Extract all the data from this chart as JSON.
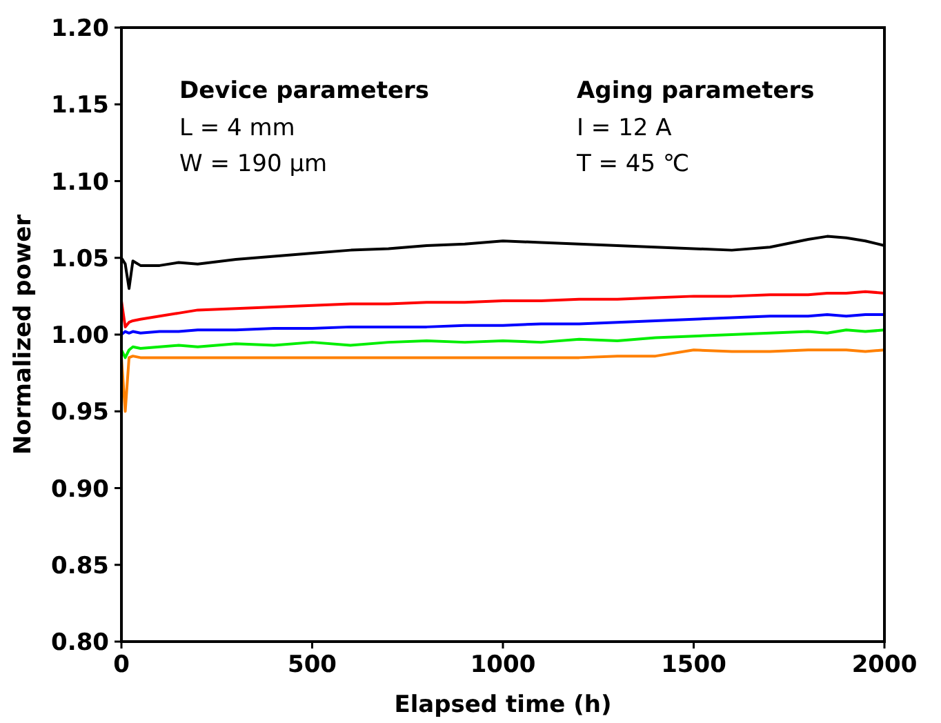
{
  "chart_data": {
    "type": "line",
    "xlabel": "Elapsed time (h)",
    "ylabel": "Normalized power",
    "xlim": [
      0,
      2000
    ],
    "ylim": [
      0.8,
      1.2
    ],
    "xticks": [
      0,
      500,
      1000,
      1500,
      2000
    ],
    "yticks": [
      {
        "value": 0.8,
        "label": "0.80"
      },
      {
        "value": 0.85,
        "label": "0.85"
      },
      {
        "value": 0.9,
        "label": "0.90"
      },
      {
        "value": 0.95,
        "label": "0.95"
      },
      {
        "value": 1.0,
        "label": "1.00"
      },
      {
        "value": 1.05,
        "label": "1.05"
      },
      {
        "value": 1.1,
        "label": "1.10"
      },
      {
        "value": 1.15,
        "label": "1.15"
      },
      {
        "value": 1.2,
        "label": "1.20"
      }
    ],
    "grid": false,
    "line_style": "solid",
    "annotations": [
      "Device parameters",
      "L = 4  mm",
      "W = 190  μm",
      "Aging parameters",
      "I = 12  A",
      "T = 45  ℃"
    ],
    "x": [
      0,
      10,
      20,
      30,
      50,
      100,
      150,
      200,
      300,
      400,
      500,
      600,
      700,
      800,
      900,
      1000,
      1100,
      1200,
      1300,
      1400,
      1500,
      1600,
      1700,
      1800,
      1850,
      1900,
      1950,
      2000
    ],
    "series": [
      {
        "color": "#000000",
        "values": [
          1.05,
          1.046,
          1.03,
          1.048,
          1.045,
          1.045,
          1.047,
          1.046,
          1.049,
          1.051,
          1.053,
          1.055,
          1.056,
          1.058,
          1.059,
          1.061,
          1.06,
          1.059,
          1.058,
          1.057,
          1.056,
          1.055,
          1.057,
          1.062,
          1.064,
          1.063,
          1.061,
          1.058
        ]
      },
      {
        "color": "#ff0000",
        "values": [
          1.022,
          1.005,
          1.008,
          1.009,
          1.01,
          1.012,
          1.014,
          1.016,
          1.017,
          1.018,
          1.019,
          1.02,
          1.02,
          1.021,
          1.021,
          1.022,
          1.022,
          1.023,
          1.023,
          1.024,
          1.025,
          1.025,
          1.026,
          1.026,
          1.027,
          1.027,
          1.028,
          1.027
        ]
      },
      {
        "color": "#0000ff",
        "values": [
          1.0,
          1.002,
          1.001,
          1.002,
          1.001,
          1.002,
          1.002,
          1.003,
          1.003,
          1.004,
          1.004,
          1.005,
          1.005,
          1.005,
          1.006,
          1.006,
          1.007,
          1.007,
          1.008,
          1.009,
          1.01,
          1.011,
          1.012,
          1.012,
          1.013,
          1.012,
          1.013,
          1.013
        ]
      },
      {
        "color": "#00ee00",
        "values": [
          0.99,
          0.985,
          0.99,
          0.992,
          0.991,
          0.992,
          0.993,
          0.992,
          0.994,
          0.993,
          0.995,
          0.993,
          0.995,
          0.996,
          0.995,
          0.996,
          0.995,
          0.997,
          0.996,
          0.998,
          0.999,
          1.0,
          1.001,
          1.002,
          1.001,
          1.003,
          1.002,
          1.003
        ]
      },
      {
        "color": "#ff8000",
        "values": [
          0.985,
          0.95,
          0.985,
          0.986,
          0.985,
          0.985,
          0.985,
          0.985,
          0.985,
          0.985,
          0.985,
          0.985,
          0.985,
          0.985,
          0.985,
          0.985,
          0.985,
          0.985,
          0.986,
          0.986,
          0.99,
          0.989,
          0.989,
          0.99,
          0.99,
          0.99,
          0.989,
          0.99
        ]
      }
    ]
  }
}
